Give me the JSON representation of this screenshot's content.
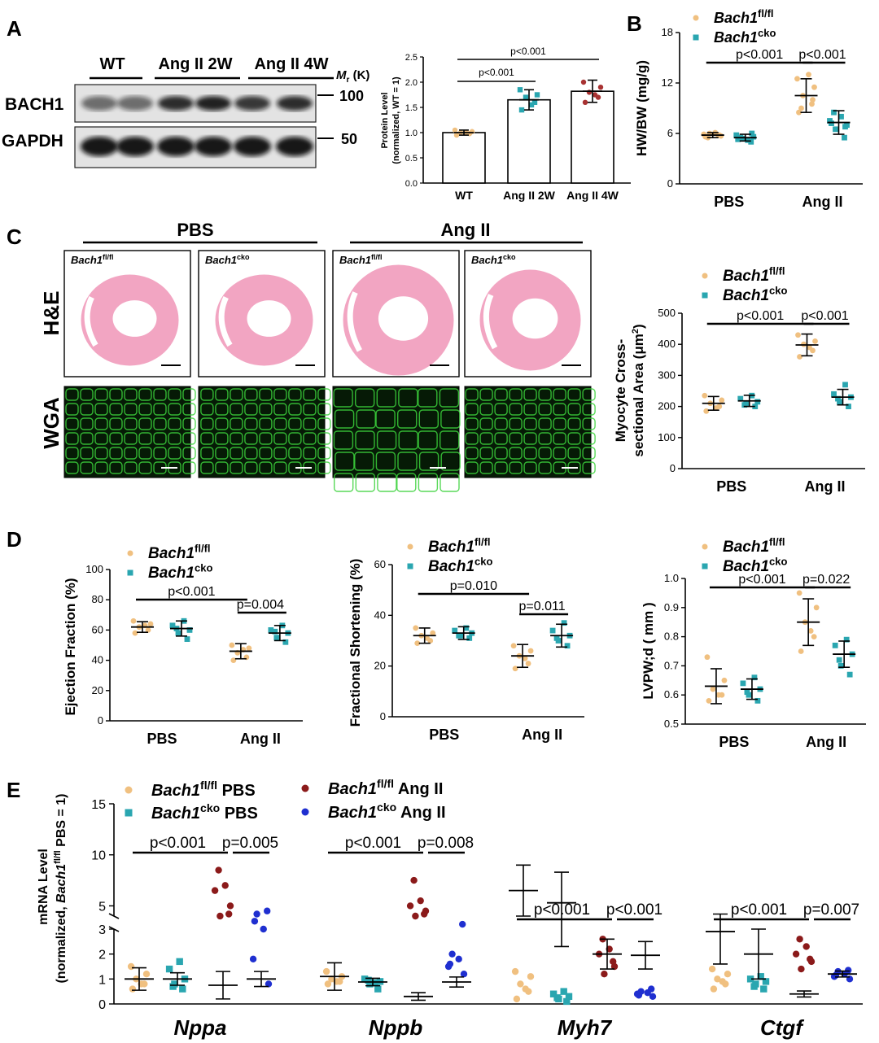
{
  "panels": {
    "A": {
      "label": "A",
      "blot": {
        "groups": [
          "WT",
          "Ang II 2W",
          "Ang II 4W"
        ],
        "rows": [
          "BACH1",
          "GAPDH"
        ],
        "mr_label": "M",
        "mr_sub": "r",
        "mr_unit": " (K)",
        "markers": [
          "100",
          "50"
        ]
      },
      "chart": {
        "type": "bar",
        "categories": [
          "WT",
          "Ang II 2W",
          "Ang II 4W"
        ],
        "values": [
          1.0,
          1.65,
          1.82
        ],
        "errors": [
          0.05,
          0.2,
          0.22
        ],
        "points": [
          [
            0.95,
            0.98,
            1.0,
            1.02,
            1.05,
            1.0
          ],
          [
            1.45,
            1.6,
            1.7,
            1.75,
            1.85,
            1.55
          ],
          [
            1.6,
            1.7,
            1.8,
            1.9,
            2.0,
            1.75
          ]
        ],
        "ylabel_line1": "Protein Level",
        "ylabel_line2": "(normalized, WT = 1)",
        "ylim": [
          0,
          2.5
        ],
        "yticks": [
          "0.0",
          "0.5",
          "1.0",
          "1.5",
          "2.0",
          "2.5"
        ],
        "pvalues": [
          "p<0.001",
          "p<0.001"
        ]
      }
    },
    "B": {
      "label": "B",
      "chart": {
        "type": "scatter",
        "categories": [
          "PBS",
          "Ang II"
        ],
        "ylabel": "HW/BW (mg/g)",
        "ylim": [
          0,
          18
        ],
        "yticks": [
          "0",
          "6",
          "12",
          "18"
        ],
        "series": [
          {
            "name": "Bach1",
            "sup": "fl/fl",
            "color": "#f0c080",
            "values": [
              [
                5.6,
                5.8,
                6.0,
                5.7,
                5.9,
                6.1,
                5.5,
                5.8
              ],
              [
                8.5,
                9.5,
                10.5,
                11.5,
                12.5,
                13.0,
                9.0,
                10.0
              ]
            ]
          },
          {
            "name": "Bach1",
            "sup": "cko",
            "color": "#2aa6b0",
            "values": [
              [
                5.0,
                5.4,
                5.6,
                5.8,
                5.2,
                5.5,
                6.0,
                5.3
              ],
              [
                5.5,
                6.5,
                7.0,
                7.5,
                8.0,
                8.5,
                6.8,
                7.2
              ]
            ]
          }
        ],
        "means": [
          [
            5.8,
            5.5
          ],
          [
            10.5,
            7.3
          ]
        ],
        "errors": [
          [
            0.3,
            0.4
          ],
          [
            2.0,
            1.4
          ]
        ],
        "pvalues": [
          "p<0.001",
          "p<0.001"
        ]
      }
    },
    "C": {
      "label": "C",
      "headers": [
        "PBS",
        "Ang II"
      ],
      "row_labels": [
        "H&E",
        "WGA"
      ],
      "image_labels": [
        {
          "name": "Bach1",
          "sup": "fl/fl"
        },
        {
          "name": "Bach1",
          "sup": "cko"
        },
        {
          "name": "Bach1",
          "sup": "fl/fl"
        },
        {
          "name": "Bach1",
          "sup": "cko"
        }
      ],
      "chart": {
        "type": "scatter",
        "categories": [
          "PBS",
          "Ang II"
        ],
        "ylabel_line1": "Myocyte Cross-",
        "ylabel_line2": "sectional Area (μm",
        "ylabel_sup": "2",
        "ylabel_end": ")",
        "ylim": [
          0,
          500
        ],
        "yticks": [
          "0",
          "100",
          "200",
          "300",
          "400",
          "500"
        ],
        "series": [
          {
            "name": "Bach1",
            "sup": "fl/fl",
            "color": "#f0c080",
            "values": [
              [
                185,
                200,
                210,
                220,
                235,
                195
              ],
              [
                360,
                380,
                400,
                410,
                430,
                390
              ]
            ]
          },
          {
            "name": "Bach1",
            "sup": "cko",
            "color": "#2aa6b0",
            "values": [
              [
                200,
                210,
                215,
                225,
                235,
                205
              ],
              [
                200,
                215,
                230,
                240,
                270,
                225
              ]
            ]
          }
        ],
        "means": [
          [
            210,
            218
          ],
          [
            398,
            230
          ]
        ],
        "errors": [
          [
            22,
            18
          ],
          [
            35,
            25
          ]
        ],
        "pvalues": [
          "p<0.001",
          "p<0.001"
        ]
      }
    },
    "D": {
      "label": "D",
      "charts": [
        {
          "type": "scatter",
          "categories": [
            "PBS",
            "Ang II"
          ],
          "ylabel": "Ejection Fraction (%)",
          "ylim": [
            0,
            100
          ],
          "yticks": [
            "0",
            "20",
            "40",
            "60",
            "80",
            "100"
          ],
          "series": [
            {
              "name": "Bach1",
              "sup": "fl/fl",
              "color": "#f0c080",
              "values": [
                [
                  58,
                  60,
                  62,
                  64,
                  66,
                  63
                ],
                [
                  40,
                  42,
                  45,
                  48,
                  50,
                  47
                ]
              ]
            },
            {
              "name": "Bach1",
              "sup": "cko",
              "color": "#2aa6b0",
              "values": [
                [
                  54,
                  58,
                  60,
                  63,
                  66,
                  61
                ],
                [
                  52,
                  55,
                  58,
                  60,
                  63,
                  59
                ]
              ]
            }
          ],
          "means": [
            [
              62,
              61
            ],
            [
              46,
              58
            ]
          ],
          "errors": [
            [
              3.5,
              5
            ],
            [
              5,
              5
            ]
          ],
          "pvalues": [
            "p<0.001",
            "p=0.004"
          ]
        },
        {
          "type": "scatter",
          "categories": [
            "PBS",
            "Ang II"
          ],
          "ylabel": "Fractional Shortening (%)",
          "ylim": [
            0,
            60
          ],
          "yticks": [
            "0",
            "20",
            "40",
            "60"
          ],
          "series": [
            {
              "name": "Bach1",
              "sup": "fl/fl",
              "color": "#f0c080",
              "values": [
                [
                  29,
                  30,
                  32,
                  33,
                  35,
                  31
                ],
                [
                  19,
                  21,
                  24,
                  26,
                  28,
                  23
                ]
              ]
            },
            {
              "name": "Bach1",
              "sup": "cko",
              "color": "#2aa6b0",
              "values": [
                [
                  31,
                  32,
                  33,
                  34,
                  35,
                  32
                ],
                [
                  28,
                  30,
                  32,
                  34,
                  37,
                  31
                ]
              ]
            }
          ],
          "means": [
            [
              32,
              33
            ],
            [
              24,
              32
            ]
          ],
          "errors": [
            [
              3,
              2.5
            ],
            [
              4.5,
              4.5
            ]
          ],
          "pvalues": [
            "p=0.010",
            "p=0.011"
          ]
        },
        {
          "type": "scatter",
          "categories": [
            "PBS",
            "Ang II"
          ],
          "ylabel": "LVPW;d ( mm )",
          "ylim": [
            0.5,
            1.0
          ],
          "yticks": [
            "0.5",
            "0.6",
            "0.7",
            "0.8",
            "0.9",
            "1.0"
          ],
          "series": [
            {
              "name": "Bach1",
              "sup": "fl/fl",
              "color": "#f0c080",
              "values": [
                [
                  0.58,
                  0.6,
                  0.62,
                  0.65,
                  0.73,
                  0.6
                ],
                [
                  0.75,
                  0.8,
                  0.85,
                  0.9,
                  0.95,
                  0.82
                ]
              ]
            },
            {
              "name": "Bach1",
              "sup": "cko",
              "color": "#2aa6b0",
              "values": [
                [
                  0.58,
                  0.6,
                  0.62,
                  0.64,
                  0.66,
                  0.61
                ],
                [
                  0.67,
                  0.7,
                  0.74,
                  0.77,
                  0.79,
                  0.72
                ]
              ]
            }
          ],
          "means": [
            [
              0.63,
              0.62
            ],
            [
              0.85,
              0.74
            ]
          ],
          "errors": [
            [
              0.06,
              0.035
            ],
            [
              0.08,
              0.045
            ]
          ],
          "pvalues": [
            "p<0.001",
            "p=0.022"
          ]
        }
      ]
    },
    "E": {
      "label": "E",
      "chart": {
        "type": "scatter",
        "categories": [
          "Nppa",
          "Nppb",
          "Myh7",
          "Ctgf"
        ],
        "ylabel_line1": "mRNA  Level",
        "ylabel_line2a": "(normalized, ",
        "ylabel_line2b": "Bach1",
        "ylabel_sup": "fl/fl",
        "ylabel_line2c": " PBS = 1)",
        "lower_ticks": [
          "0",
          "1",
          "2",
          "3"
        ],
        "upper_ticks": [
          "5",
          "10",
          "15"
        ],
        "series": [
          {
            "name": "Bach1",
            "sup": "fl/fl",
            "suffix": " PBS",
            "color": "#f0c080",
            "marker": "circle",
            "values": [
              [
                0.6,
                0.8,
                1.0,
                1.2,
                1.5,
                0.8
              ],
              [
                0.8,
                0.9,
                1.0,
                1.1,
                1.3,
                0.9
              ],
              [
                0.2,
                0.5,
                0.8,
                1.1,
                1.3,
                0.6
              ],
              [
                0.6,
                0.8,
                1.0,
                1.2,
                1.4,
                0.9
              ]
            ]
          },
          {
            "name": "Bach1",
            "sup": "cko",
            "suffix": " PBS",
            "color": "#2aa6b0",
            "marker": "square",
            "values": [
              [
                0.6,
                0.8,
                1.0,
                1.4,
                1.7,
                0.7
              ],
              [
                0.6,
                0.8,
                0.9,
                1.0,
                0.85,
                0.95
              ],
              [
                0.1,
                0.2,
                0.3,
                0.4,
                0.5,
                0.25
              ],
              [
                0.6,
                0.8,
                0.9,
                1.0,
                1.1,
                0.7
              ]
            ]
          },
          {
            "name": "Bach1",
            "sup": "fl/fl",
            "suffix": " Ang II",
            "color": "#8b1a1a",
            "marker": "circle",
            "values": [
              [
                4.0,
                5.0,
                6.5,
                7.0,
                8.5,
                4.2
              ],
              [
                4.0,
                4.5,
                5.0,
                5.5,
                7.5,
                4.2
              ],
              [
                1.2,
                1.5,
                2.0,
                2.2,
                2.6,
                1.7
              ],
              [
                1.4,
                1.7,
                2.0,
                2.3,
                2.6,
                1.8
              ]
            ]
          },
          {
            "name": "Bach1",
            "sup": "cko",
            "suffix": " Ang II",
            "color": "#1f2fd0",
            "marker": "circle",
            "values": [
              [
                0.8,
                1.8,
                3.0,
                4.2,
                4.5,
                3.5
              ],
              [
                1.2,
                1.5,
                1.8,
                2.0,
                3.2,
                1.6
              ],
              [
                0.3,
                0.4,
                0.45,
                0.5,
                0.6,
                0.35
              ],
              [
                1.0,
                1.1,
                1.2,
                1.3,
                1.35,
                1.15
              ]
            ]
          }
        ],
        "means": [
          [
            1.0,
            1.1,
            6.5,
            2.9
          ],
          [
            1.0,
            0.88,
            5.3,
            2.0
          ],
          [
            0.75,
            0.3,
            2.0,
            0.4
          ],
          [
            1.0,
            0.88,
            1.95,
            1.2
          ]
        ],
        "errors": [
          [
            0.45,
            0.55,
            2.5,
            1.3
          ],
          [
            0.25,
            0.15,
            3.0,
            1.0
          ],
          [
            0.55,
            0.15,
            0.6,
            0.12
          ],
          [
            0.3,
            0.2,
            0.55,
            0.12
          ]
        ],
        "pvalues": [
          [
            "p<0.001",
            "p=0.005"
          ],
          [
            "p<0.001",
            "p=0.008"
          ],
          [
            "p<0.001",
            "p<0.001"
          ],
          [
            "p<0.001",
            "p=0.007"
          ]
        ]
      }
    }
  },
  "colors": {
    "flfl": "#f0c080",
    "cko": "#2aa6b0",
    "he_pink": "#f2a5c2",
    "wga_green": "#3cd23c",
    "ang_flfl": "#8b1a1a",
    "ang_cko": "#1f2fd0"
  }
}
